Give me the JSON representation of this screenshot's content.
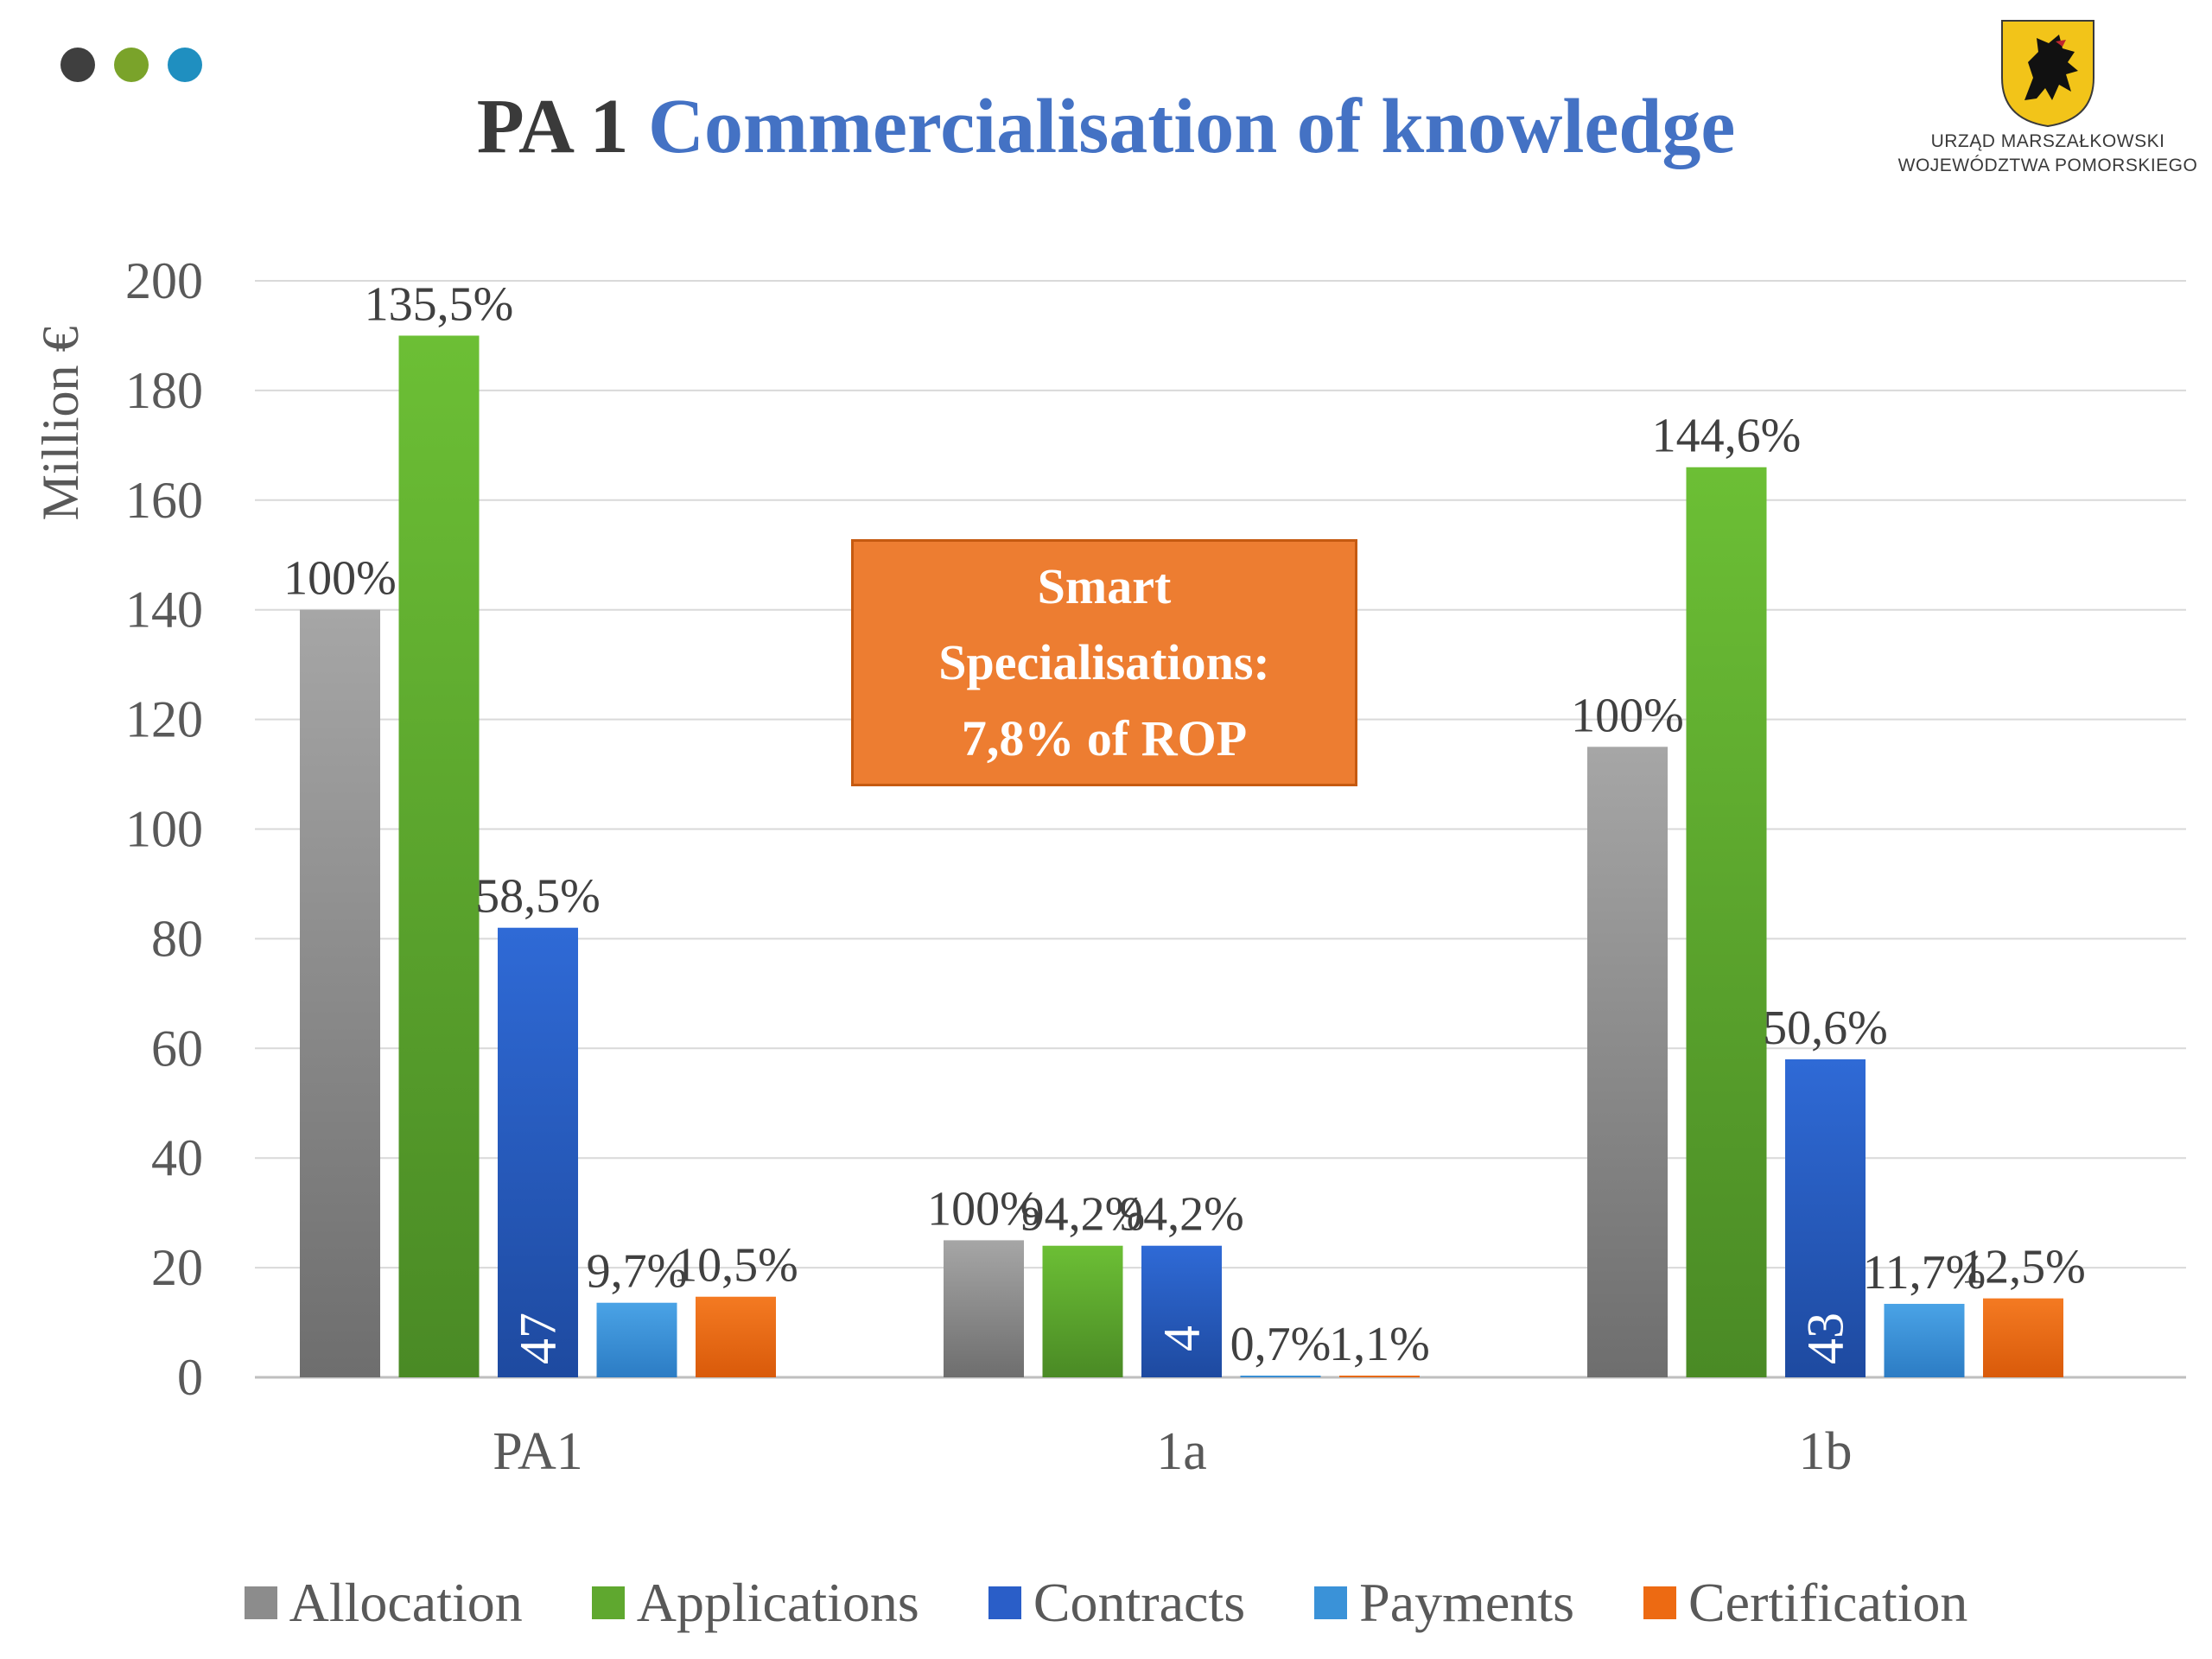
{
  "header": {
    "dots": [
      "#3f3f3f",
      "#7aa32a",
      "#1f8fc0"
    ],
    "title_prefix": "PA 1",
    "title_main": "Commercialisation of knowledge",
    "logo_text": [
      "URZĄD MARSZAŁKOWSKI",
      "WOJEWÓDZTWA POMORSKIEGO"
    ]
  },
  "callout": {
    "lines": [
      "Smart",
      "Specialisations:",
      "7,8% of ROP"
    ],
    "color": "#ed7d31"
  },
  "chart_data": {
    "type": "bar",
    "title": "",
    "xlabel": "",
    "ylabel": "Million €",
    "ylim": [
      0,
      200
    ],
    "yticks": [
      0,
      20,
      40,
      60,
      80,
      100,
      120,
      140,
      160,
      180,
      200
    ],
    "grid": true,
    "legend_position": "bottom",
    "categories": [
      "PA1",
      "1a",
      "1b"
    ],
    "series": [
      {
        "name": "Allocation",
        "color": "#8c8c8c",
        "values": [
          140,
          25,
          115
        ],
        "labels": [
          "100%",
          "100%",
          "100%"
        ],
        "inner_labels": [
          null,
          null,
          null
        ]
      },
      {
        "name": "Applications",
        "color": "#5fa82f",
        "values": [
          190,
          24,
          166
        ],
        "labels": [
          "135,5%",
          "94,2%",
          "144,6%"
        ],
        "inner_labels": [
          null,
          null,
          null
        ]
      },
      {
        "name": "Contracts",
        "color": "#2a5ec8",
        "values": [
          82,
          24,
          58
        ],
        "labels": [
          "58,5%",
          "94,2%",
          "50,6%"
        ],
        "inner_labels": [
          "47",
          "4",
          "43"
        ]
      },
      {
        "name": "Payments",
        "color": "#3a92d8",
        "values": [
          13.6,
          0.2,
          13.4
        ],
        "labels": [
          "9,7%",
          "0,7%",
          "11,7%"
        ],
        "inner_labels": [
          null,
          null,
          null
        ]
      },
      {
        "name": "Certification",
        "color": "#ed6a12",
        "values": [
          14.7,
          0.3,
          14.4
        ],
        "labels": [
          "10,5%",
          "1,1%",
          "12,5%"
        ],
        "inner_labels": [
          null,
          null,
          null
        ]
      }
    ]
  }
}
